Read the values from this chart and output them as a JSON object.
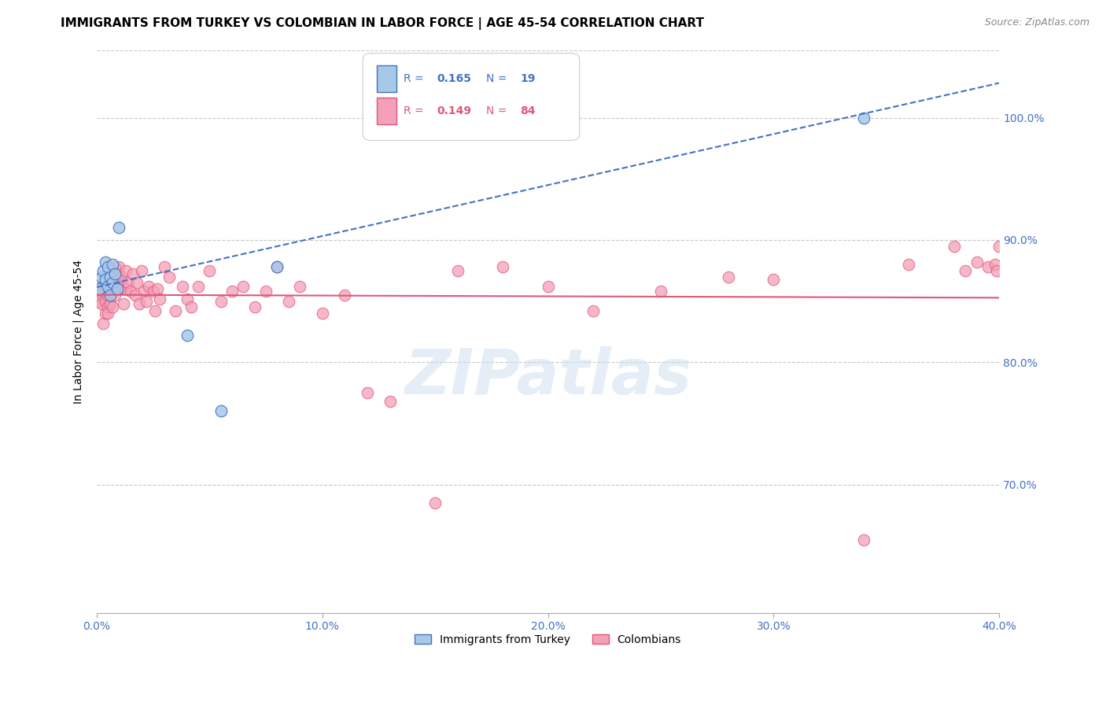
{
  "title": "IMMIGRANTS FROM TURKEY VS COLOMBIAN IN LABOR FORCE | AGE 45-54 CORRELATION CHART",
  "source": "Source: ZipAtlas.com",
  "ylabel": "In Labor Force | Age 45-54",
  "legend_label1": "Immigrants from Turkey",
  "legend_label2": "Colombians",
  "R1": 0.165,
  "N1": 19,
  "R2": 0.149,
  "N2": 84,
  "xmin": 0.0,
  "xmax": 0.4,
  "ymin": 0.595,
  "ymax": 1.055,
  "yticks": [
    0.7,
    0.8,
    0.9,
    1.0
  ],
  "xticks": [
    0.0,
    0.1,
    0.2,
    0.3,
    0.4
  ],
  "color_turkey": "#a8c8e8",
  "color_turkey_line": "#4472c4",
  "color_colombia": "#f4a0b8",
  "color_colombia_line": "#e05878",
  "color_axis_labels": "#4472c4",
  "color_grid": "#c8c8c8",
  "turkey_x": [
    0.001,
    0.002,
    0.003,
    0.004,
    0.004,
    0.005,
    0.005,
    0.006,
    0.006,
    0.007,
    0.007,
    0.008,
    0.009,
    0.01,
    0.04,
    0.055,
    0.08,
    0.125,
    0.34
  ],
  "turkey_y": [
    0.86,
    0.87,
    0.875,
    0.882,
    0.868,
    0.878,
    0.862,
    0.87,
    0.855,
    0.88,
    0.865,
    0.872,
    0.86,
    0.91,
    0.822,
    0.76,
    0.878,
    1.0,
    1.0
  ],
  "colombia_x": [
    0.001,
    0.002,
    0.002,
    0.003,
    0.003,
    0.003,
    0.004,
    0.004,
    0.004,
    0.005,
    0.005,
    0.005,
    0.005,
    0.006,
    0.006,
    0.006,
    0.007,
    0.007,
    0.007,
    0.008,
    0.008,
    0.008,
    0.009,
    0.009,
    0.01,
    0.01,
    0.01,
    0.011,
    0.011,
    0.012,
    0.012,
    0.013,
    0.013,
    0.014,
    0.015,
    0.016,
    0.017,
    0.018,
    0.019,
    0.02,
    0.021,
    0.022,
    0.023,
    0.025,
    0.026,
    0.027,
    0.028,
    0.03,
    0.032,
    0.035,
    0.038,
    0.04,
    0.042,
    0.045,
    0.05,
    0.055,
    0.06,
    0.065,
    0.07,
    0.075,
    0.08,
    0.085,
    0.09,
    0.1,
    0.11,
    0.12,
    0.13,
    0.15,
    0.16,
    0.18,
    0.2,
    0.22,
    0.25,
    0.28,
    0.3,
    0.34,
    0.36,
    0.38,
    0.385,
    0.39,
    0.395,
    0.398,
    0.399,
    0.4
  ],
  "colombia_y": [
    0.85,
    0.848,
    0.862,
    0.855,
    0.832,
    0.858,
    0.85,
    0.84,
    0.862,
    0.855,
    0.845,
    0.862,
    0.84,
    0.858,
    0.865,
    0.848,
    0.862,
    0.875,
    0.845,
    0.868,
    0.878,
    0.855,
    0.87,
    0.862,
    0.872,
    0.86,
    0.878,
    0.862,
    0.87,
    0.862,
    0.848,
    0.875,
    0.86,
    0.865,
    0.858,
    0.872,
    0.855,
    0.865,
    0.848,
    0.875,
    0.858,
    0.85,
    0.862,
    0.858,
    0.842,
    0.86,
    0.852,
    0.878,
    0.87,
    0.842,
    0.862,
    0.852,
    0.845,
    0.862,
    0.875,
    0.85,
    0.858,
    0.862,
    0.845,
    0.858,
    0.878,
    0.85,
    0.862,
    0.84,
    0.855,
    0.775,
    0.768,
    0.685,
    0.875,
    0.878,
    0.862,
    0.842,
    0.858,
    0.87,
    0.868,
    0.655,
    0.88,
    0.895,
    0.875,
    0.882,
    0.878,
    0.88,
    0.875,
    0.895
  ],
  "background_color": "#ffffff",
  "title_fontsize": 11,
  "axis_label_fontsize": 10,
  "tick_fontsize": 10,
  "source_fontsize": 9,
  "watermark_text": "ZIPatlas",
  "watermark_color": "#ccddf0",
  "watermark_alpha": 0.5
}
